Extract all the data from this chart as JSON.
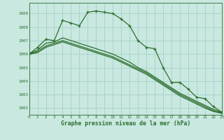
{
  "background_color": "#c8e8e0",
  "grid_color": "#aad4cc",
  "line_color": "#2d6e2d",
  "xlabel": "Graphe pression niveau de la mer (hPa)",
  "ylim": [
    1001.5,
    1009.8
  ],
  "xlim": [
    0,
    23
  ],
  "yticks": [
    1002,
    1003,
    1004,
    1005,
    1006,
    1007,
    1008,
    1009
  ],
  "xticks": [
    0,
    1,
    2,
    3,
    4,
    5,
    6,
    7,
    8,
    9,
    10,
    11,
    12,
    13,
    14,
    15,
    16,
    17,
    18,
    19,
    20,
    21,
    22,
    23
  ],
  "series": [
    {
      "x": [
        0,
        1,
        2,
        3,
        4,
        5,
        6,
        7,
        8,
        9,
        10,
        11,
        12,
        13,
        14,
        15,
        16,
        17,
        18,
        19,
        20,
        21,
        22,
        23
      ],
      "y": [
        1006.0,
        1006.5,
        1007.1,
        1007.0,
        1008.5,
        1008.3,
        1008.1,
        1009.1,
        1009.2,
        1009.1,
        1009.0,
        1008.6,
        1008.1,
        1007.0,
        1006.5,
        1006.4,
        1005.0,
        1003.9,
        1003.9,
        1003.4,
        1002.8,
        1002.7,
        1002.1,
        1001.7
      ],
      "marker": "+"
    },
    {
      "x": [
        0,
        1,
        2,
        3,
        4,
        5,
        6,
        7,
        8,
        9,
        10,
        11,
        12,
        13,
        14,
        15,
        16,
        17,
        18,
        19,
        20,
        21,
        22,
        23
      ],
      "y": [
        1006.0,
        1006.3,
        1006.8,
        1006.9,
        1007.2,
        1007.0,
        1006.8,
        1006.6,
        1006.4,
        1006.2,
        1006.0,
        1005.7,
        1005.4,
        1005.0,
        1004.7,
        1004.3,
        1003.9,
        1003.5,
        1003.1,
        1002.8,
        1002.5,
        1002.2,
        1001.9,
        1001.7
      ],
      "marker": null
    },
    {
      "x": [
        0,
        1,
        2,
        3,
        4,
        5,
        6,
        7,
        8,
        9,
        10,
        11,
        12,
        13,
        14,
        15,
        16,
        17,
        18,
        19,
        20,
        21,
        22,
        23
      ],
      "y": [
        1006.0,
        1006.2,
        1006.6,
        1006.8,
        1007.0,
        1006.8,
        1006.6,
        1006.4,
        1006.2,
        1006.0,
        1005.8,
        1005.5,
        1005.2,
        1004.9,
        1004.6,
        1004.2,
        1003.8,
        1003.4,
        1003.0,
        1002.7,
        1002.4,
        1002.1,
        1001.8,
        1001.65
      ],
      "marker": null
    },
    {
      "x": [
        0,
        1,
        2,
        3,
        4,
        5,
        6,
        7,
        8,
        9,
        10,
        11,
        12,
        13,
        14,
        15,
        16,
        17,
        18,
        19,
        20,
        21,
        22,
        23
      ],
      "y": [
        1006.0,
        1006.1,
        1006.5,
        1006.7,
        1006.9,
        1006.7,
        1006.5,
        1006.3,
        1006.1,
        1005.9,
        1005.7,
        1005.4,
        1005.1,
        1004.8,
        1004.5,
        1004.1,
        1003.7,
        1003.3,
        1002.9,
        1002.6,
        1002.3,
        1002.0,
        1001.75,
        1001.6
      ],
      "marker": null
    }
  ]
}
